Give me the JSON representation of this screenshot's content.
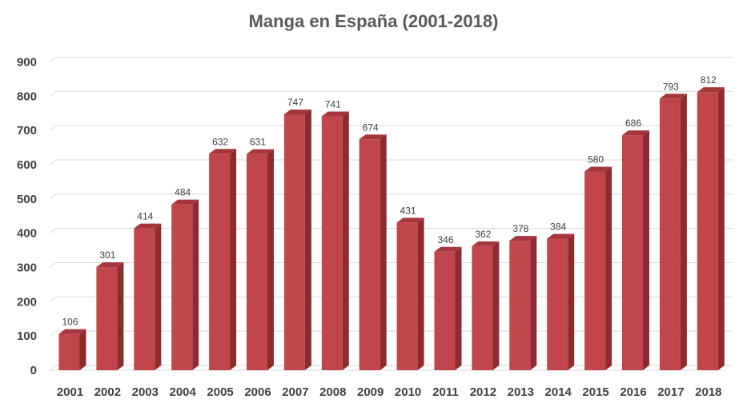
{
  "chart_data": {
    "type": "bar",
    "title": "Manga en España (2001-2018)",
    "categories": [
      "2001",
      "2002",
      "2003",
      "2004",
      "2005",
      "2006",
      "2007",
      "2008",
      "2009",
      "2010",
      "2011",
      "2012",
      "2013",
      "2014",
      "2015",
      "2016",
      "2017",
      "2018"
    ],
    "values": [
      106,
      301,
      414,
      484,
      632,
      631,
      747,
      741,
      674,
      431,
      346,
      362,
      378,
      384,
      580,
      686,
      793,
      812
    ],
    "ylim": [
      0,
      900
    ],
    "yticks": [
      0,
      100,
      200,
      300,
      400,
      500,
      600,
      700,
      800,
      900
    ],
    "grid": true,
    "style": "3d-column",
    "colors": {
      "bar_front": "#c0464b",
      "bar_side": "#8e2b2f",
      "bar_top": "#a5373c",
      "grid": "#d9d9d9",
      "text": "#404040"
    }
  }
}
